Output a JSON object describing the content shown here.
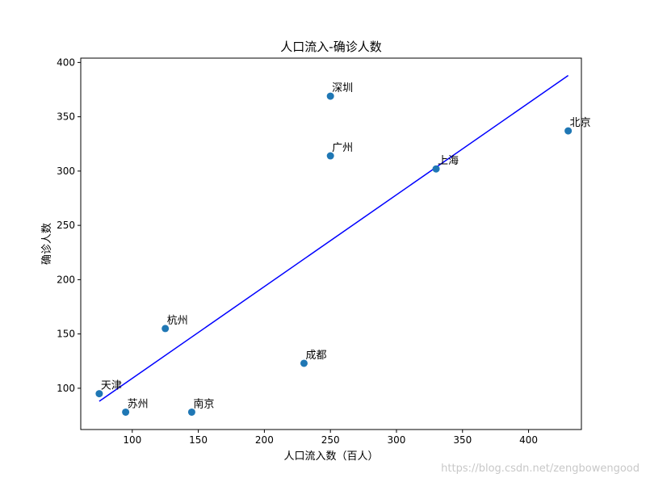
{
  "watermark": "https://blog.csdn.net/zengbowengood",
  "chart_data": {
    "type": "scatter",
    "title": "人口流入-确诊人数",
    "xlabel": "人口流入数（百人）",
    "ylabel": "确诊人数",
    "xlim": [
      61,
      440
    ],
    "ylim": [
      62,
      404
    ],
    "xticks": [
      100,
      150,
      200,
      250,
      300,
      350,
      400
    ],
    "yticks": [
      100,
      150,
      200,
      250,
      300,
      350,
      400
    ],
    "grid": false,
    "legend": "none",
    "marker_color": "#1f77b4",
    "line_color": "#0000ff",
    "points": [
      {
        "label": "天津",
        "x": 75,
        "y": 95
      },
      {
        "label": "苏州",
        "x": 95,
        "y": 78
      },
      {
        "label": "杭州",
        "x": 125,
        "y": 155
      },
      {
        "label": "南京",
        "x": 145,
        "y": 78
      },
      {
        "label": "成都",
        "x": 230,
        "y": 123
      },
      {
        "label": "深圳",
        "x": 250,
        "y": 369
      },
      {
        "label": "广州",
        "x": 250,
        "y": 314
      },
      {
        "label": "上海",
        "x": 330,
        "y": 302
      },
      {
        "label": "北京",
        "x": 430,
        "y": 337
      }
    ],
    "fit_line": {
      "x": [
        75,
        430
      ],
      "y": [
        88,
        388
      ]
    }
  }
}
